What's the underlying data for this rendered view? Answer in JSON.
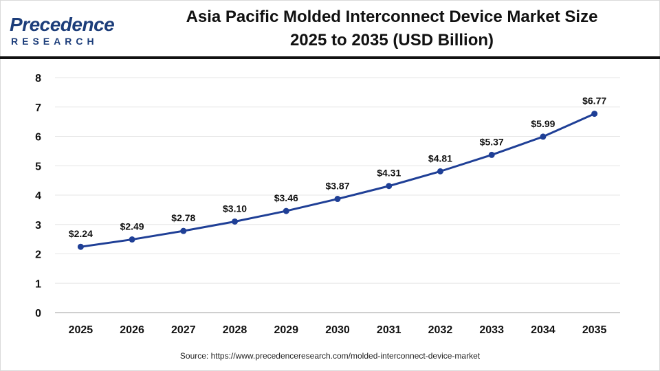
{
  "logo": {
    "word": "Precedence",
    "sub": "RESEARCH"
  },
  "title_line1": "Asia Pacific Molded Interconnect Device Market Size",
  "title_line2": "2025 to 2035 (USD Billion)",
  "source": "Source: https://www.precedenceresearch.com/molded-interconnect-device-market",
  "colors": {
    "line": "#1f3f96",
    "point": "#1f3f96",
    "grid": "#e6e6e6",
    "axis": "#bfbfbf",
    "text": "#111111"
  },
  "chart_data": {
    "type": "line",
    "title": "Asia Pacific Molded Interconnect Device Market Size 2025 to 2035 (USD Billion)",
    "categories": [
      "2025",
      "2026",
      "2027",
      "2028",
      "2029",
      "2030",
      "2031",
      "2032",
      "2033",
      "2034",
      "2035"
    ],
    "series": [
      {
        "values": [
          2.24,
          2.49,
          2.78,
          3.1,
          3.46,
          3.87,
          4.31,
          4.81,
          5.37,
          5.99,
          6.77
        ]
      }
    ],
    "data_labels": [
      "$2.24",
      "$2.49",
      "$2.78",
      "$3.10",
      "$3.46",
      "$3.87",
      "$4.31",
      "$4.81",
      "$5.37",
      "$5.99",
      "$6.77"
    ],
    "ylim": [
      0,
      8
    ],
    "yticks": [
      "0",
      "1",
      "2",
      "3",
      "4",
      "5",
      "6",
      "7",
      "8"
    ],
    "grid": true,
    "legend": "none",
    "xlabel": "",
    "ylabel": ""
  }
}
